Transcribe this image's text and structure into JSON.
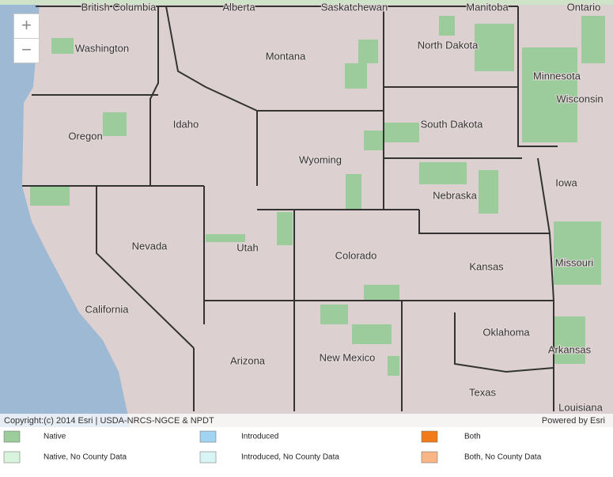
{
  "map": {
    "zoom_in": "+",
    "zoom_out": "−",
    "labels": [
      "British Columbia",
      "Alberta",
      "Saskatchewan",
      "Manitoba",
      "Ontario",
      "Washington",
      "Montana",
      "North Dakota",
      "Minnesota",
      "Wisconsin",
      "Idaho",
      "Oregon",
      "South Dakota",
      "Wyoming",
      "Iowa",
      "Nebraska",
      "Nevada",
      "Utah",
      "Colorado",
      "Kansas",
      "Missouri",
      "California",
      "Oklahoma",
      "Arkansas",
      "Arizona",
      "New Mexico",
      "Texas",
      "Louisiana"
    ],
    "attribution": "Copyright:(c) 2014 Esri | USDA-NRCS-NGCE & NPDT",
    "powered_by": "Powered by Esri"
  },
  "legend": {
    "items": [
      {
        "label": "Native",
        "color": "#9ccc9c"
      },
      {
        "label": "Introduced",
        "color": "#a3d3f2"
      },
      {
        "label": "Both",
        "color": "#f07a1c"
      },
      {
        "label": "Native, No County Data",
        "color": "#d9f4dc"
      },
      {
        "label": "Introduced, No County Data",
        "color": "#d9f4f4"
      },
      {
        "label": "Both, No County Data",
        "color": "#f8b585"
      }
    ]
  }
}
